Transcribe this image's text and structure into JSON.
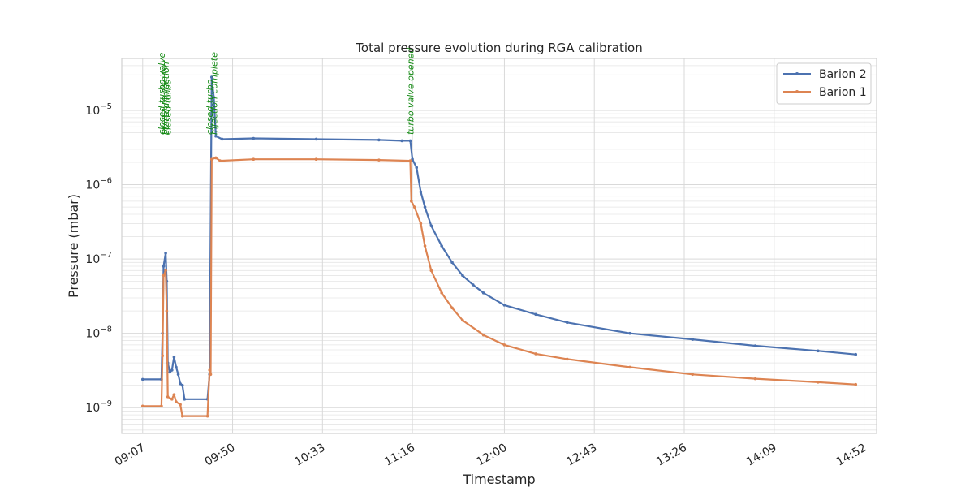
{
  "chart_data": {
    "type": "line",
    "title": "Total pressure evolution during RGA calibration",
    "xlabel": "Timestamp",
    "ylabel": "Pressure (mbar)",
    "yscale": "log",
    "ylim": [
      4.5e-10,
      5e-05
    ],
    "xlim": [
      "08:57",
      "14:58"
    ],
    "grid": true,
    "legend_position": "top-right",
    "x_ticks": [
      "09:07",
      "09:50",
      "10:33",
      "11:16",
      "12:00",
      "12:43",
      "13:26",
      "14:09",
      "14:52"
    ],
    "y_ticks": [
      {
        "base": "10",
        "exp": "−9"
      },
      {
        "base": "10",
        "exp": "−8"
      },
      {
        "base": "10",
        "exp": "−7"
      },
      {
        "base": "10",
        "exp": "−6"
      },
      {
        "base": "10",
        "exp": "−5"
      }
    ],
    "annotations": [
      {
        "time": "09:16",
        "text": "closed turbo valve"
      },
      {
        "time": "09:17",
        "text": "pressure rise to"
      },
      {
        "time": "09:18",
        "text": "started injection"
      },
      {
        "time": "09:19",
        "text": "closed turbo"
      },
      {
        "time": "09:39",
        "text": "closed turbo"
      },
      {
        "time": "09:41",
        "text": "injection complete"
      },
      {
        "time": "11:15",
        "text": "turbo valve opened"
      }
    ],
    "series": [
      {
        "name": "Barion 2",
        "color": "#4c72b0",
        "points": [
          [
            "09:07",
            2.4e-09
          ],
          [
            "09:16",
            2.4e-09
          ],
          [
            "09:16.5",
            1e-08
          ],
          [
            "09:17",
            8e-08
          ],
          [
            "09:18",
            1.2e-07
          ],
          [
            "09:18.5",
            5e-08
          ],
          [
            "09:19",
            4e-09
          ],
          [
            "09:20",
            3e-09
          ],
          [
            "09:21",
            3.2e-09
          ],
          [
            "09:22",
            4.8e-09
          ],
          [
            "09:23",
            3.5e-09
          ],
          [
            "09:24",
            2.8e-09
          ],
          [
            "09:25",
            2.1e-09
          ],
          [
            "09:26",
            2e-09
          ],
          [
            "09:27",
            1.3e-09
          ],
          [
            "09:38",
            1.3e-09
          ],
          [
            "09:39",
            2.8e-09
          ],
          [
            "09:40",
            2.8e-05
          ],
          [
            "09:41",
            1.5e-05
          ],
          [
            "09:42",
            4.5e-06
          ],
          [
            "09:45",
            4.1e-06
          ],
          [
            "10:00",
            4.2e-06
          ],
          [
            "10:30",
            4.1e-06
          ],
          [
            "11:00",
            4e-06
          ],
          [
            "11:11",
            3.9e-06
          ],
          [
            "11:15",
            3.9e-06
          ],
          [
            "11:16",
            2.2e-06
          ],
          [
            "11:18",
            1.7e-06
          ],
          [
            "11:20",
            8e-07
          ],
          [
            "11:22",
            5e-07
          ],
          [
            "11:25",
            2.8e-07
          ],
          [
            "11:30",
            1.5e-07
          ],
          [
            "11:35",
            9e-08
          ],
          [
            "11:40",
            6e-08
          ],
          [
            "11:45",
            4.5e-08
          ],
          [
            "11:50",
            3.5e-08
          ],
          [
            "12:00",
            2.4e-08
          ],
          [
            "12:15",
            1.8e-08
          ],
          [
            "12:30",
            1.4e-08
          ],
          [
            "13:00",
            1e-08
          ],
          [
            "13:30",
            8.3e-09
          ],
          [
            "14:00",
            6.8e-09
          ],
          [
            "14:30",
            5.8e-09
          ],
          [
            "14:48",
            5.2e-09
          ]
        ]
      },
      {
        "name": "Barion 1",
        "color": "#dd8452",
        "points": [
          [
            "09:07",
            1.05e-09
          ],
          [
            "09:16",
            1.05e-09
          ],
          [
            "09:16.5",
            5e-09
          ],
          [
            "09:17",
            6e-08
          ],
          [
            "09:18",
            7e-08
          ],
          [
            "09:18.5",
            2e-08
          ],
          [
            "09:19",
            1.4e-09
          ],
          [
            "09:21",
            1.3e-09
          ],
          [
            "09:22",
            1.5e-09
          ],
          [
            "09:23",
            1.2e-09
          ],
          [
            "09:25",
            1.1e-09
          ],
          [
            "09:26",
            7.7e-10
          ],
          [
            "09:38",
            7.7e-10
          ],
          [
            "09:39",
            3.2e-09
          ],
          [
            "09:39.5",
            2.8e-09
          ],
          [
            "09:40",
            2.2e-06
          ],
          [
            "09:42",
            2.3e-06
          ],
          [
            "09:44",
            2.1e-06
          ],
          [
            "10:00",
            2.2e-06
          ],
          [
            "10:30",
            2.2e-06
          ],
          [
            "11:00",
            2.15e-06
          ],
          [
            "11:15",
            2.1e-06
          ],
          [
            "11:15.5",
            6e-07
          ],
          [
            "11:17",
            5e-07
          ],
          [
            "11:20",
            3e-07
          ],
          [
            "11:22",
            1.5e-07
          ],
          [
            "11:25",
            7e-08
          ],
          [
            "11:30",
            3.5e-08
          ],
          [
            "11:35",
            2.2e-08
          ],
          [
            "11:40",
            1.5e-08
          ],
          [
            "11:50",
            9.5e-09
          ],
          [
            "12:00",
            7e-09
          ],
          [
            "12:15",
            5.3e-09
          ],
          [
            "12:30",
            4.5e-09
          ],
          [
            "13:00",
            3.5e-09
          ],
          [
            "13:30",
            2.8e-09
          ],
          [
            "14:00",
            2.45e-09
          ],
          [
            "14:30",
            2.2e-09
          ],
          [
            "14:48",
            2.05e-09
          ]
        ]
      }
    ]
  }
}
